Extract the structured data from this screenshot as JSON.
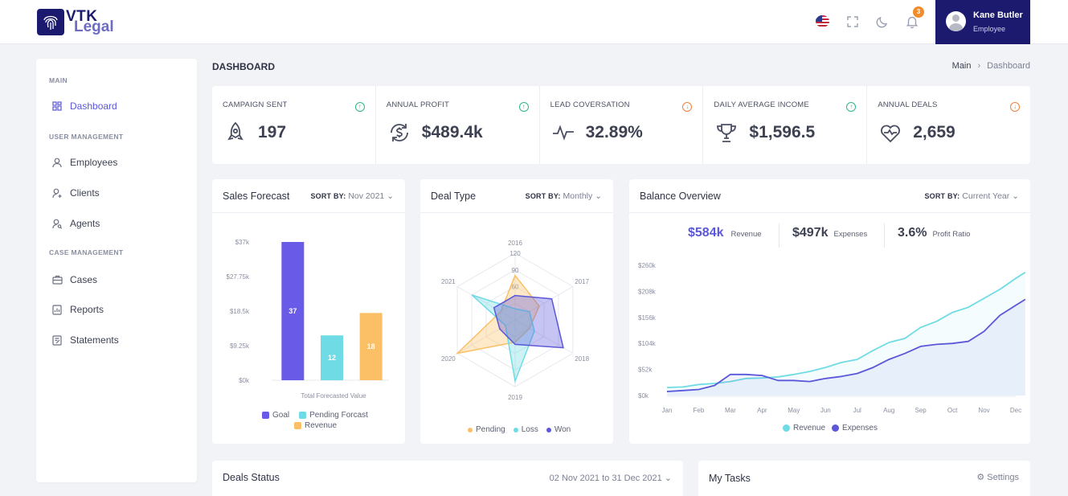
{
  "brand": {
    "line1": "VTK",
    "line2": "Legal"
  },
  "header": {
    "notification_count": "3",
    "user": {
      "name": "Kane Butler",
      "role": "Employee"
    }
  },
  "sidebar": {
    "sections": [
      {
        "title": "MAIN",
        "items": [
          {
            "label": "Dashboard",
            "icon": "grid-icon",
            "active": true
          }
        ]
      },
      {
        "title": "USER MANAGEMENT",
        "items": [
          {
            "label": "Employees",
            "icon": "user-icon"
          },
          {
            "label": "Clients",
            "icon": "user-plus-icon"
          },
          {
            "label": "Agents",
            "icon": "user-search-icon"
          }
        ]
      },
      {
        "title": "CASE MANAGEMENT",
        "items": [
          {
            "label": "Cases",
            "icon": "briefcase-icon"
          },
          {
            "label": "Reports",
            "icon": "report-icon"
          },
          {
            "label": "Statements",
            "icon": "edit-doc-icon"
          }
        ]
      }
    ]
  },
  "page": {
    "title": "DASHBOARD",
    "breadcrumb": {
      "root": "Main",
      "sep": "›",
      "current": "Dashboard"
    }
  },
  "kpis": [
    {
      "label": "CAMPAIGN SENT",
      "value": "197",
      "trend": "up",
      "icon": "rocket-icon"
    },
    {
      "label": "ANNUAL PROFIT",
      "value": "$489.4k",
      "trend": "up",
      "icon": "dollar-cycle-icon"
    },
    {
      "label": "LEAD COVERSATION",
      "value": "32.89%",
      "trend": "down",
      "icon": "pulse-icon"
    },
    {
      "label": "DAILY AVERAGE INCOME",
      "value": "$1,596.5",
      "trend": "up",
      "icon": "trophy-icon"
    },
    {
      "label": "ANNUAL DEALS",
      "value": "2,659",
      "trend": "down",
      "icon": "heart-pulse-icon"
    }
  ],
  "colors": {
    "accent": "#5b57d9",
    "cyan": "#6fdbe4",
    "orange": "#fbbf65",
    "navy": "#1b1a6e",
    "up": "#2bb58a",
    "down": "#f0803a"
  },
  "sales_forecast": {
    "title": "Sales Forecast",
    "sort_label": "SORT BY:",
    "sort_value": "Nov 2021",
    "legend": [
      "Goal",
      "Pending Forcast",
      "Revenue"
    ]
  },
  "deal_type": {
    "title": "Deal Type",
    "sort_label": "SORT BY:",
    "sort_value": "Monthly",
    "legend": [
      "Pending",
      "Loss",
      "Won"
    ]
  },
  "balance": {
    "title": "Balance Overview",
    "sort_label": "SORT BY:",
    "sort_value": "Current Year",
    "stats": [
      {
        "value": "$584k",
        "label": "Revenue"
      },
      {
        "value": "$497k",
        "label": "Expenses"
      },
      {
        "value": "3.6%",
        "label": "Profit Ratio"
      }
    ],
    "legend": [
      "Revenue",
      "Expenses"
    ]
  },
  "deals_status": {
    "title": "Deals Status",
    "range": "02 Nov 2021 to 31 Dec 2021"
  },
  "tasks": {
    "title": "My Tasks",
    "settings": "Settings"
  },
  "chart_data": [
    {
      "type": "bar",
      "categories": [
        "Goal",
        "Pending Forcast",
        "Revenue"
      ],
      "values": [
        37,
        12,
        18
      ],
      "data_labels": [
        "37",
        "12",
        "18"
      ],
      "xlabel": "Total Forecasted Value",
      "ylabel": "",
      "yticks": [
        "$0k",
        "$9.25k",
        "$18.5k",
        "$27.75k",
        "$37k"
      ],
      "ylim": [
        0,
        37
      ],
      "colors": [
        "#6a5ae8",
        "#6fdbe4",
        "#fbbf65"
      ],
      "legend_position": "bottom"
    },
    {
      "type": "radar",
      "axes": [
        "2016",
        "2017",
        "2018",
        "2019",
        "2020",
        "2021"
      ],
      "rticks": [
        "60",
        "90",
        "120"
      ],
      "rlim": [
        30,
        120
      ],
      "series": [
        {
          "name": "Pending",
          "values": [
            80,
            50,
            30,
            40,
            120,
            30
          ],
          "color": "#fbbf65"
        },
        {
          "name": "Loss",
          "values": [
            20,
            30,
            40,
            110,
            20,
            90
          ],
          "color": "#6fdbe4"
        },
        {
          "name": "Won",
          "values": [
            44,
            76,
            100,
            44,
            32,
            44
          ],
          "color": "#5b57d9"
        }
      ],
      "legend_position": "bottom"
    },
    {
      "type": "area",
      "x": [
        "Jan",
        "Feb",
        "Mar",
        "Apr",
        "May",
        "Jun",
        "Jul",
        "Aug",
        "Sep",
        "Oct",
        "Nov",
        "Dec"
      ],
      "yticks": [
        "$0k",
        "$52k",
        "$104k",
        "$156k",
        "$208k",
        "$260k"
      ],
      "ylim": [
        0,
        260
      ],
      "series": [
        {
          "name": "Revenue",
          "color": "#6fdbe4",
          "points": [
            [
              0,
              16
            ],
            [
              0.5,
              17
            ],
            [
              1,
              22
            ],
            [
              1.5,
              24
            ],
            [
              2,
              28
            ],
            [
              2.5,
              34
            ],
            [
              3,
              35
            ],
            [
              3.5,
              37
            ],
            [
              4,
              42
            ],
            [
              4.5,
              48
            ],
            [
              5,
              56
            ],
            [
              5.5,
              66
            ],
            [
              6,
              72
            ],
            [
              6.5,
              90
            ],
            [
              7,
              106
            ],
            [
              7.5,
              114
            ],
            [
              8,
              136
            ],
            [
              8.5,
              148
            ],
            [
              9,
              166
            ],
            [
              9.5,
              176
            ],
            [
              10,
              194
            ],
            [
              10.5,
              212
            ],
            [
              11,
              234
            ],
            [
              11.3,
              246
            ]
          ]
        },
        {
          "name": "Expenses",
          "color": "#5b57d9",
          "points": [
            [
              0,
              8
            ],
            [
              0.5,
              10
            ],
            [
              1,
              12
            ],
            [
              1.5,
              20
            ],
            [
              2,
              42
            ],
            [
              2.5,
              42
            ],
            [
              3,
              40
            ],
            [
              3.5,
              30
            ],
            [
              4,
              30
            ],
            [
              4.5,
              28
            ],
            [
              5,
              34
            ],
            [
              5.5,
              38
            ],
            [
              6,
              44
            ],
            [
              6.5,
              56
            ],
            [
              7,
              72
            ],
            [
              7.5,
              84
            ],
            [
              8,
              98
            ],
            [
              8.5,
              102
            ],
            [
              9,
              104
            ],
            [
              9.5,
              108
            ],
            [
              10,
              128
            ],
            [
              10.5,
              160
            ],
            [
              11,
              180
            ],
            [
              11.3,
              192
            ]
          ]
        }
      ],
      "legend_position": "bottom"
    }
  ]
}
